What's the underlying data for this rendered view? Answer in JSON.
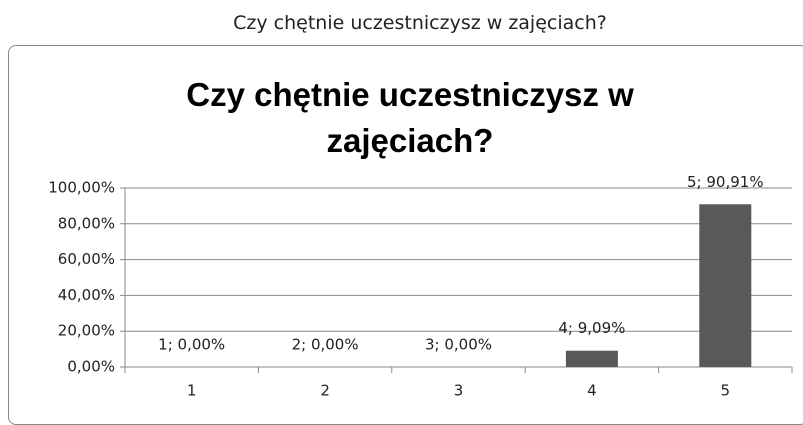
{
  "caption": "Czy chętnie uczestniczysz w zajęciach?",
  "chart_data": {
    "type": "bar",
    "title": "Czy chętnie uczestniczysz w zajęciach?",
    "categories": [
      "1",
      "2",
      "3",
      "4",
      "5"
    ],
    "values": [
      0,
      0,
      0,
      9.09,
      90.91
    ],
    "value_labels": [
      "1; 0,00%",
      "2; 0,00%",
      "3; 0,00%",
      "4; 9,09%",
      "5; 90,91%"
    ],
    "color": "#595959",
    "ylim": [
      0,
      100
    ],
    "yticks": [
      {
        "value": 0,
        "label": "0,00%"
      },
      {
        "value": 20,
        "label": "20,00%"
      },
      {
        "value": 40,
        "label": "40,00%"
      },
      {
        "value": 60,
        "label": "60,00%"
      },
      {
        "value": 80,
        "label": "80,00%"
      },
      {
        "value": 100,
        "label": "100,00%"
      }
    ],
    "grid": true
  }
}
